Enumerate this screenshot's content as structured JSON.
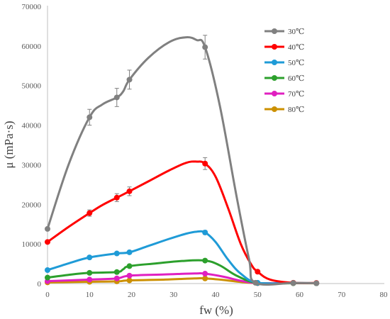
{
  "chart_data": {
    "type": "line",
    "xlabel": "fw (%)",
    "ylabel": "μ  (mPa·s)",
    "xlim": [
      0,
      80
    ],
    "ylim": [
      0,
      70000
    ],
    "xticks": [
      0,
      10,
      20,
      30,
      40,
      50,
      60,
      70,
      80
    ],
    "yticks": [
      0,
      10000,
      20000,
      30000,
      40000,
      50000,
      60000,
      70000
    ],
    "xtick_labels": [
      "0",
      "10",
      "20",
      "30",
      "40",
      "50",
      "60",
      "70",
      "80"
    ],
    "ytick_labels": [
      "0",
      "10000",
      "20000",
      "30000",
      "40000",
      "50000",
      "60000",
      "70000"
    ],
    "grid": false,
    "legend_position": "top-right",
    "series": [
      {
        "name": "30℃",
        "color": "#808080",
        "points": [
          [
            0,
            13800
          ],
          [
            10,
            42000
          ],
          [
            16.5,
            47000
          ],
          [
            19.5,
            51500
          ],
          [
            37.5,
            59700
          ],
          [
            49.5,
            200
          ],
          [
            58.5,
            150
          ],
          [
            64,
            100
          ]
        ],
        "error_bars": [
          0,
          2000,
          2300,
          2400,
          3000,
          0,
          0,
          0
        ],
        "curve": [
          [
            0,
            13800
          ],
          [
            5,
            30000
          ],
          [
            10,
            42000
          ],
          [
            13,
            45200
          ],
          [
            16.5,
            47000
          ],
          [
            18,
            48500
          ],
          [
            19.5,
            51500
          ],
          [
            24,
            57000
          ],
          [
            29,
            61000
          ],
          [
            33,
            62200
          ],
          [
            35.5,
            61500
          ],
          [
            37.5,
            59700
          ],
          [
            41,
            45000
          ],
          [
            45,
            22000
          ],
          [
            48,
            6000
          ],
          [
            49.5,
            200
          ],
          [
            58.5,
            150
          ],
          [
            64,
            100
          ]
        ],
        "show_markers": true
      },
      {
        "name": "40℃",
        "color": "#ff0000",
        "points": [
          [
            0,
            10500
          ],
          [
            10,
            17800
          ],
          [
            16.5,
            21700
          ],
          [
            19.5,
            23300
          ],
          [
            37.5,
            30300
          ],
          [
            50,
            3000
          ],
          [
            58.5,
            200
          ],
          [
            64,
            150
          ]
        ],
        "error_bars": [
          0,
          800,
          1000,
          1100,
          1500,
          0,
          0,
          0
        ],
        "curve": [
          [
            0,
            10500
          ],
          [
            5,
            14300
          ],
          [
            10,
            17800
          ],
          [
            13,
            19800
          ],
          [
            16.5,
            21700
          ],
          [
            19.5,
            23300
          ],
          [
            24,
            25800
          ],
          [
            29,
            28600
          ],
          [
            33,
            30500
          ],
          [
            35.5,
            30800
          ],
          [
            37.5,
            30300
          ],
          [
            40,
            27000
          ],
          [
            43,
            19000
          ],
          [
            46,
            10000
          ],
          [
            48.5,
            4800
          ],
          [
            50,
            3000
          ],
          [
            53,
            1000
          ],
          [
            58.5,
            200
          ],
          [
            64,
            150
          ]
        ],
        "show_markers": true
      },
      {
        "name": "50℃",
        "color": "#1f9bd7",
        "points": [
          [
            0,
            3400
          ],
          [
            10,
            6600
          ],
          [
            16.5,
            7600
          ],
          [
            19.5,
            7900
          ],
          [
            37.5,
            12900
          ],
          [
            50,
            200
          ],
          [
            58.5,
            150
          ],
          [
            64,
            100
          ]
        ],
        "error_bars": [
          0,
          0,
          0,
          0,
          500,
          0,
          0,
          0
        ],
        "curve": [
          [
            0,
            3400
          ],
          [
            5,
            5100
          ],
          [
            10,
            6600
          ],
          [
            16.5,
            7600
          ],
          [
            19.5,
            7900
          ],
          [
            24,
            9500
          ],
          [
            29,
            11300
          ],
          [
            33,
            12600
          ],
          [
            35.5,
            13100
          ],
          [
            37.5,
            12900
          ],
          [
            40,
            10500
          ],
          [
            43,
            6000
          ],
          [
            46,
            2500
          ],
          [
            50,
            200
          ],
          [
            58.5,
            150
          ],
          [
            64,
            100
          ]
        ],
        "show_markers": true
      },
      {
        "name": "60℃",
        "color": "#2ca02c",
        "points": [
          [
            0,
            1500
          ],
          [
            10,
            2700
          ],
          [
            16.5,
            2900
          ],
          [
            19.5,
            4400
          ],
          [
            37.5,
            5800
          ],
          [
            50,
            150
          ],
          [
            58.5,
            100
          ],
          [
            64,
            80
          ]
        ],
        "error_bars": [
          0,
          0,
          0,
          0,
          0,
          0,
          0,
          0
        ],
        "curve": [
          [
            0,
            1500
          ],
          [
            5,
            2200
          ],
          [
            10,
            2700
          ],
          [
            16.5,
            2900
          ],
          [
            18,
            3600
          ],
          [
            19.5,
            4400
          ],
          [
            26,
            5100
          ],
          [
            32,
            5700
          ],
          [
            37.5,
            5800
          ],
          [
            41,
            4600
          ],
          [
            45,
            2000
          ],
          [
            50,
            150
          ],
          [
            58.5,
            100
          ],
          [
            64,
            80
          ]
        ],
        "show_markers": true
      },
      {
        "name": "70℃",
        "color": "#e020c0",
        "points": [
          [
            0,
            600
          ],
          [
            10,
            1000
          ],
          [
            16.5,
            1300
          ],
          [
            19.5,
            2000
          ],
          [
            37.5,
            2500
          ],
          [
            50,
            120
          ],
          [
            58.5,
            100
          ],
          [
            64,
            80
          ]
        ],
        "error_bars": [
          0,
          0,
          0,
          0,
          0,
          0,
          0,
          0
        ],
        "curve": [
          [
            0,
            600
          ],
          [
            10,
            1000
          ],
          [
            16.5,
            1300
          ],
          [
            19.5,
            2000
          ],
          [
            28,
            2300
          ],
          [
            35,
            2550
          ],
          [
            37.5,
            2500
          ],
          [
            42,
            1700
          ],
          [
            46,
            700
          ],
          [
            50,
            120
          ],
          [
            58.5,
            100
          ],
          [
            64,
            80
          ]
        ],
        "show_markers": true
      },
      {
        "name": "80℃",
        "color": "#cc9000",
        "points": [
          [
            0,
            300
          ],
          [
            10,
            450
          ],
          [
            16.5,
            550
          ],
          [
            19.5,
            800
          ],
          [
            37.5,
            1300
          ],
          [
            50,
            100
          ],
          [
            58.5,
            80
          ],
          [
            64,
            60
          ]
        ],
        "error_bars": [
          0,
          0,
          0,
          0,
          0,
          0,
          0,
          0
        ],
        "curve": [
          [
            0,
            300
          ],
          [
            10,
            450
          ],
          [
            16.5,
            550
          ],
          [
            19.5,
            800
          ],
          [
            28,
            1000
          ],
          [
            35,
            1300
          ],
          [
            37.5,
            1300
          ],
          [
            42,
            900
          ],
          [
            46,
            400
          ],
          [
            50,
            100
          ],
          [
            58.5,
            80
          ],
          [
            64,
            60
          ]
        ],
        "show_markers": true
      }
    ]
  }
}
